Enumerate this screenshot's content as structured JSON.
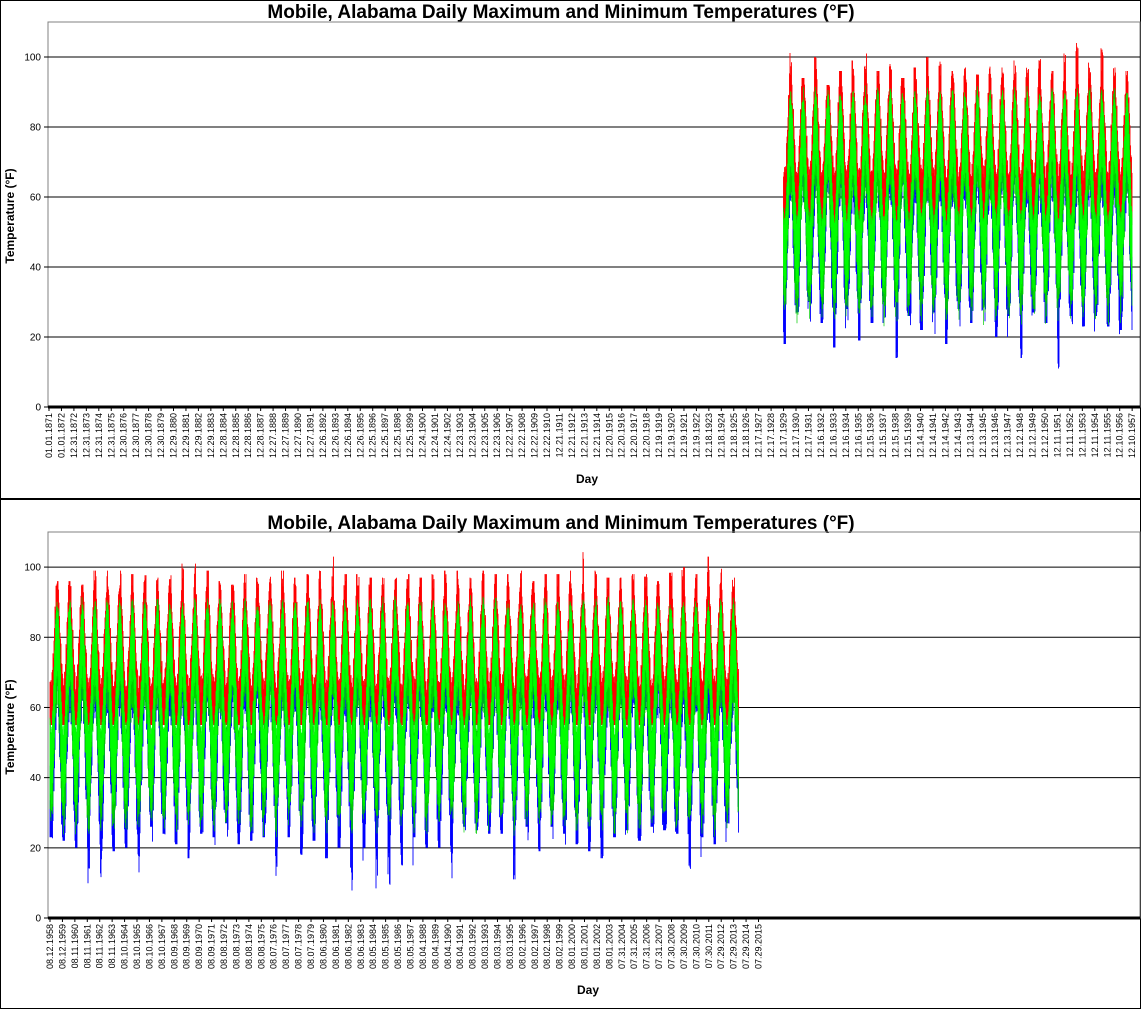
{
  "chart_data": [
    {
      "type": "line",
      "title": "Mobile, Alabama Daily Maximum and Minimum Temperatures (°F)",
      "xlabel": "Day",
      "ylabel": "Temperature (°F)",
      "ylim": [
        0,
        110
      ],
      "yticks": [
        0,
        20,
        40,
        60,
        80,
        100
      ],
      "grid": "horizontal",
      "x_ticks": [
        "01.01.1871",
        "01.01.1872",
        "12.31.1872",
        "12.31.1873",
        "12.31.1874",
        "12.31.1875",
        "12.30.1876",
        "12.30.1877",
        "12.30.1878",
        "12.30.1879",
        "12.29.1880",
        "12.29.1881",
        "12.29.1882",
        "12.29.1883",
        "12.28.1884",
        "12.28.1885",
        "12.28.1886",
        "12.28.1887",
        "12.27.1888",
        "12.27.1889",
        "12.27.1890",
        "12.27.1891",
        "12.26.1892",
        "12.26.1893",
        "12.26.1894",
        "12.26.1895",
        "12.25.1896",
        "12.25.1897",
        "12.25.1898",
        "12.25.1899",
        "12.24.1900",
        "12.24.1901",
        "12.24.1902",
        "12.23.1903",
        "12.23.1904",
        "12.23.1905",
        "12.23.1906",
        "12.22.1907",
        "12.22.1908",
        "12.22.1909",
        "12.22.1910",
        "12.21.1911",
        "12.21.1912",
        "12.21.1913",
        "12.21.1914",
        "12.20.1915",
        "12.20.1916",
        "12.20.1917",
        "12.20.1918",
        "12.19.1919",
        "12.19.1920",
        "12.19.1921",
        "12.19.1922",
        "12.18.1923",
        "12.18.1924",
        "12.18.1925",
        "12.18.1926",
        "12.17.1927",
        "12.17.1928",
        "12.17.1929",
        "12.17.1930",
        "12.17.1931",
        "12.16.1932",
        "12.16.1933",
        "12.16.1934",
        "12.16.1935",
        "12.15.1936",
        "12.15.1937",
        "12.15.1938",
        "12.15.1939",
        "12.14.1940",
        "12.14.1941",
        "12.14.1942",
        "12.14.1943",
        "12.13.1944",
        "12.13.1945",
        "12.13.1946",
        "12.13.1947",
        "12.12.1948",
        "12.12.1949",
        "12.12.1950",
        "12.11.1951",
        "12.11.1952",
        "12.11.1953",
        "12.11.1954",
        "12.11.1955",
        "12.10.1956",
        "12.10.1957"
      ],
      "data_start_tick_index": 59,
      "data_end_tick_index": 87,
      "series": [
        {
          "color": "#ff0000",
          "range": [
            52,
            104
          ],
          "annual_peak_max": [
            103,
            94,
            100,
            92,
            96,
            99,
            101,
            96,
            98,
            94,
            97,
            100,
            99,
            96,
            97,
            95,
            98,
            97,
            99,
            97,
            100,
            96,
            101,
            104,
            102,
            103,
            97,
            96,
            93
          ]
        },
        {
          "color": "#0000ff",
          "range": [
            11,
            80
          ],
          "annual_trough_min": [
            18,
            27,
            30,
            24,
            17,
            28,
            19,
            24,
            30,
            14,
            26,
            22,
            27,
            18,
            28,
            24,
            29,
            20,
            26,
            14,
            27,
            24,
            11,
            26,
            23,
            26,
            23,
            22,
            15
          ]
        },
        {
          "color": "#00cc00",
          "range": [
            25,
            90
          ]
        },
        {
          "color": "#00ff00",
          "range": [
            30,
            88
          ]
        }
      ]
    },
    {
      "type": "line",
      "title": "Mobile, Alabama Daily Maximum and Minimum Temperatures (°F)",
      "xlabel": "Day",
      "ylabel": "Temperature (°F)",
      "ylim": [
        0,
        110
      ],
      "yticks": [
        0,
        20,
        40,
        60,
        80,
        100
      ],
      "grid": "horizontal",
      "x_ticks": [
        "08.12.1958",
        "08.12.1959",
        "08.11.1960",
        "08.11.1961",
        "08.11.1962",
        "08.11.1963",
        "08.10.1964",
        "08.10.1965",
        "08.10.1966",
        "08.10.1967",
        "08.09.1968",
        "08.09.1969",
        "08.09.1970",
        "08.09.1971",
        "08.08.1972",
        "08.08.1973",
        "08.08.1974",
        "08.08.1975",
        "08.07.1976",
        "08.07.1977",
        "08.07.1978",
        "08.07.1979",
        "08.06.1980",
        "08.06.1981",
        "08.06.1982",
        "08.06.1983",
        "08.05.1984",
        "08.05.1985",
        "08.05.1986",
        "08.05.1987",
        "08.04.1988",
        "08.04.1989",
        "08.04.1990",
        "08.04.1991",
        "08.03.1992",
        "08.03.1993",
        "08.03.1994",
        "08.03.1995",
        "08.02.1996",
        "08.02.1997",
        "08.02.1998",
        "08.02.1999",
        "08.01.2000",
        "08.01.2001",
        "08.01.2002",
        "08.01.2003",
        "07.31.2004",
        "07.31.2005",
        "07.31.2006",
        "07.31.2007",
        "07.30.2008",
        "07.30.2009",
        "07.30.2010",
        "07.30.2011",
        "07.29.2012",
        "07.29.2013",
        "07.29.2014",
        "07.29.2015"
      ],
      "data_start_tick_index": 0,
      "data_end_tick_index": 55.4,
      "series": [
        {
          "color": "#ff0000",
          "range": [
            55,
            105
          ],
          "annual_peak_max": [
            96,
            96,
            95,
            99,
            99,
            99,
            98,
            99,
            97,
            98,
            101,
            101,
            99,
            96,
            95,
            98,
            97,
            98,
            99,
            97,
            98,
            99,
            103,
            98,
            98,
            97,
            97,
            99,
            98,
            97,
            98,
            99,
            99,
            97,
            99,
            98,
            98,
            99,
            96,
            98,
            98,
            99,
            105,
            99,
            97,
            97,
            98,
            98,
            96,
            99,
            100,
            98,
            103,
            101,
            97,
            95
          ]
        },
        {
          "color": "#0000ff",
          "range": [
            3,
            80
          ],
          "annual_trough_min": [
            23,
            22,
            20,
            7,
            8,
            19,
            20,
            13,
            26,
            24,
            21,
            17,
            24,
            23,
            27,
            21,
            22,
            23,
            12,
            23,
            18,
            22,
            17,
            20,
            7,
            20,
            8,
            3,
            15,
            23,
            20,
            20,
            9,
            26,
            25,
            24,
            24,
            11,
            26,
            19,
            26,
            24,
            21,
            19,
            17,
            23,
            25,
            22,
            26,
            25,
            24,
            14,
            23,
            21,
            27,
            27
          ]
        },
        {
          "color": "#00cc00",
          "range": [
            20,
            90
          ]
        },
        {
          "color": "#00ff00",
          "range": [
            25,
            88
          ]
        }
      ]
    }
  ]
}
